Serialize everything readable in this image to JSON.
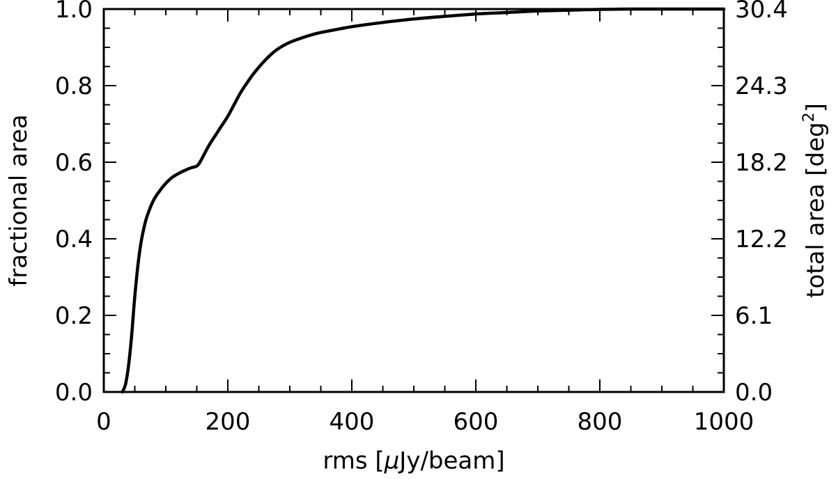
{
  "chart_data": {
    "type": "line",
    "xlabel_parts": {
      "pre": "rms [",
      "mu": "μ",
      "post": "Jy/beam]"
    },
    "ylabel": "fractional area",
    "y2label_parts": {
      "pre": "total area [deg",
      "sup": "2",
      "post": "]"
    },
    "xlim": [
      0,
      1000
    ],
    "ylim": [
      0,
      1.0
    ],
    "x_ticks": [
      "0",
      "200",
      "400",
      "600",
      "800",
      "1000"
    ],
    "y_ticks": [
      "0.0",
      "0.2",
      "0.4",
      "0.6",
      "0.8",
      "1.0"
    ],
    "y2_ticks": [
      "0.0",
      "6.1",
      "12.2",
      "18.2",
      "24.3",
      "30.4"
    ],
    "grid": false,
    "series": [
      {
        "x": [
          30,
          35,
          40,
          45,
          50,
          55,
          60,
          65,
          70,
          80,
          90,
          100,
          110,
          120,
          130,
          140,
          150,
          155,
          160,
          170,
          180,
          190,
          200,
          210,
          220,
          230,
          240,
          250,
          260,
          270,
          280,
          290,
          300,
          320,
          340,
          360,
          380,
          400,
          450,
          500,
          550,
          600,
          650,
          700,
          750,
          800,
          850,
          900,
          950,
          1000
        ],
        "y": [
          0.0,
          0.02,
          0.07,
          0.15,
          0.25,
          0.33,
          0.39,
          0.43,
          0.46,
          0.5,
          0.525,
          0.545,
          0.56,
          0.57,
          0.578,
          0.585,
          0.59,
          0.6,
          0.615,
          0.645,
          0.67,
          0.695,
          0.72,
          0.75,
          0.78,
          0.805,
          0.828,
          0.848,
          0.866,
          0.882,
          0.895,
          0.905,
          0.913,
          0.925,
          0.935,
          0.942,
          0.948,
          0.954,
          0.965,
          0.974,
          0.981,
          0.987,
          0.991,
          0.995,
          0.997,
          0.999,
          1.0,
          1.0,
          1.0,
          1.0
        ]
      }
    ]
  }
}
